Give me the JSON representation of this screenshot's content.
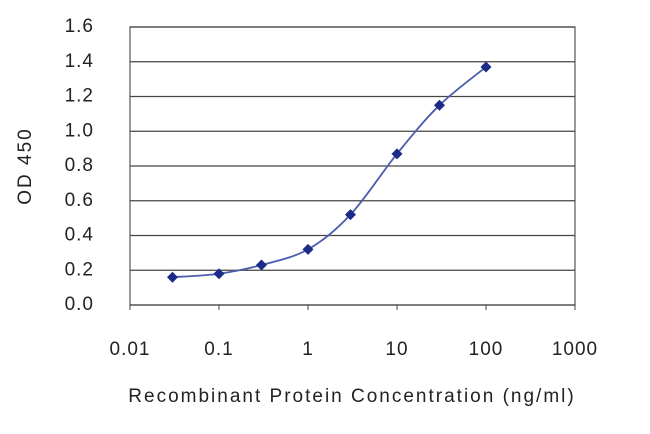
{
  "chart_data": {
    "type": "scatter",
    "x_label": "Recombinant Protein Concentration (ng/ml)",
    "y_label": "OD 450",
    "x": [
      0.03,
      0.1,
      0.3,
      1,
      3,
      10,
      30,
      100
    ],
    "series": [
      {
        "color": "#1c2a8a",
        "line_color": "#4c5cae",
        "values": [
          0.16,
          0.18,
          0.23,
          0.32,
          0.52,
          0.87,
          1.15,
          1.37
        ]
      }
    ],
    "xscale": "log",
    "xlim": [
      0.01,
      1000
    ],
    "xticks": [
      0.01,
      0.1,
      1,
      10,
      100,
      1000
    ],
    "ylim": [
      0,
      1.6
    ],
    "yticks": [
      {
        "value": 0,
        "label": "0.0"
      },
      0.2,
      0.4,
      0.6,
      0.8,
      {
        "value": 1,
        "label": "1.0"
      },
      1.2,
      1.4,
      1.6
    ],
    "grid": true
  }
}
